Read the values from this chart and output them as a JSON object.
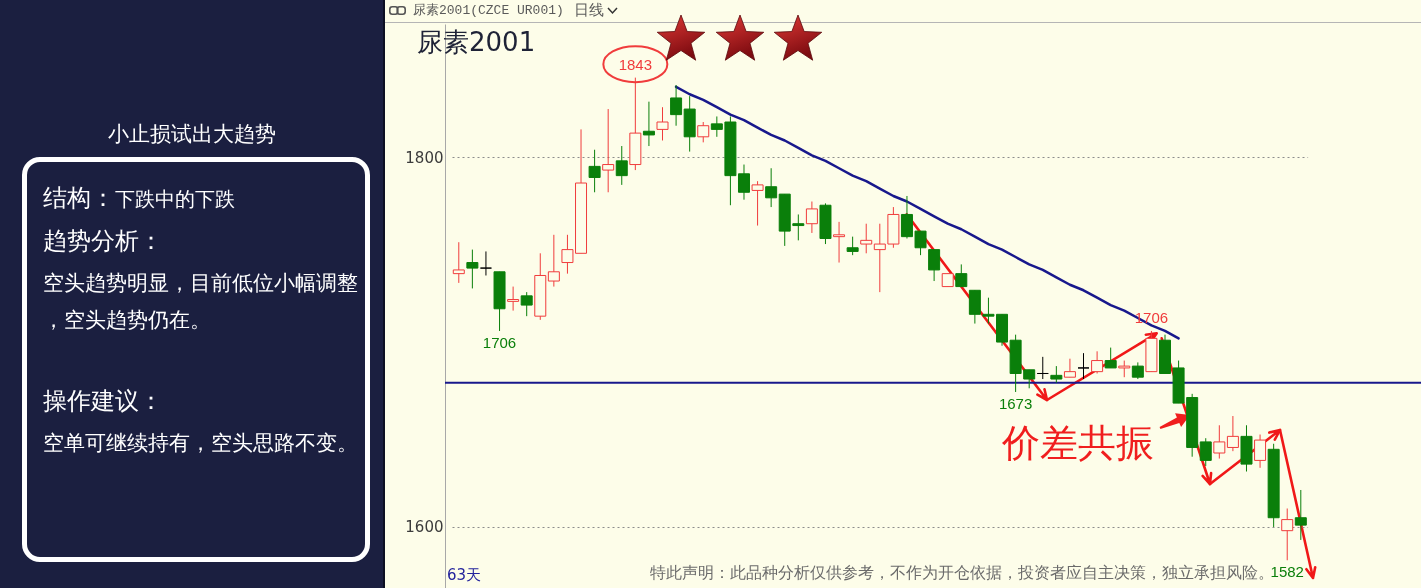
{
  "chart_data": [
    {
      "type": "other",
      "title": "小止损试出大趋势",
      "annotations": [
        "结构：",
        "下跌中的下跌",
        "趋势分析：",
        "空头趋势明显，目前低位小幅调整，空头趋势仍在。",
        "操作建议：",
        "空单可继续持有，空头思路不变。"
      ]
    },
    {
      "type": "candlestick",
      "title": "尿素2001",
      "subtitle": "尿素2001(CZCE UR001)",
      "categories": [
        null,
        null,
        null,
        null,
        null,
        null,
        null,
        null,
        null,
        null,
        null,
        null,
        null,
        null,
        null,
        null,
        null,
        null,
        null,
        null,
        null,
        null,
        null,
        null,
        null,
        null,
        null,
        null,
        null,
        null,
        null,
        null,
        null,
        null,
        null,
        null,
        null,
        null,
        null,
        null,
        null,
        null,
        null,
        null,
        null,
        null,
        null,
        null,
        null,
        null,
        null,
        null,
        null,
        null,
        null,
        null,
        null,
        null,
        null,
        null,
        null,
        null,
        null
      ],
      "ohlc": [
        [
          1737,
          1754,
          1732,
          1739
        ],
        [
          1743,
          1750,
          1729,
          1740
        ],
        [
          1740,
          1749,
          1736,
          1740
        ],
        [
          1738,
          1738,
          1706,
          1718
        ],
        [
          1722,
          1730,
          1717,
          1723
        ],
        [
          1725,
          1727,
          1714,
          1720
        ],
        [
          1714,
          1748,
          1712,
          1736
        ],
        [
          1733,
          1758,
          1730,
          1738
        ],
        [
          1743,
          1758,
          1737,
          1750
        ],
        [
          1748,
          1815,
          1748,
          1786
        ],
        [
          1795,
          1804,
          1781,
          1789
        ],
        [
          1793,
          1826,
          1781,
          1796
        ],
        [
          1798,
          1806,
          1785,
          1790
        ],
        [
          1796,
          1843,
          1793,
          1813
        ],
        [
          1814,
          1830,
          1806,
          1812
        ],
        [
          1815,
          1827,
          1809,
          1819
        ],
        [
          1832,
          1839,
          1817,
          1823
        ],
        [
          1826,
          1833,
          1803,
          1811
        ],
        [
          1811,
          1819,
          1808,
          1817
        ],
        [
          1818,
          1822,
          1811,
          1815
        ],
        [
          1819,
          1822,
          1774,
          1790
        ],
        [
          1791,
          1796,
          1777,
          1781
        ],
        [
          1782,
          1787,
          1763,
          1785
        ],
        [
          1784,
          1794,
          1773,
          1778
        ],
        [
          1780,
          1780,
          1752,
          1760
        ],
        [
          1764,
          1769,
          1755,
          1763
        ],
        [
          1764,
          1776,
          1759,
          1772
        ],
        [
          1774,
          1775,
          1753,
          1756
        ],
        [
          1757,
          1765,
          1743,
          1758
        ],
        [
          1751,
          1757,
          1747,
          1749
        ],
        [
          1753,
          1764,
          1748,
          1755
        ],
        [
          1750,
          1764,
          1727,
          1753
        ],
        [
          1753,
          1773,
          1751,
          1769
        ],
        [
          1769,
          1779,
          1756,
          1757
        ],
        [
          1760,
          1760,
          1747,
          1751
        ],
        [
          1750,
          1750,
          1733,
          1739
        ],
        [
          1730,
          1737,
          1730,
          1737
        ],
        [
          1737,
          1742,
          1730,
          1730
        ],
        [
          1728,
          1728,
          1710,
          1715
        ],
        [
          1715,
          1724,
          1710,
          1714
        ],
        [
          1715,
          1715,
          1698,
          1700
        ],
        [
          1701,
          1704,
          1673,
          1683
        ],
        [
          1685,
          1685,
          1675,
          1680
        ],
        [
          1683,
          1692,
          1680,
          1683
        ],
        [
          1682,
          1687,
          1678,
          1680
        ],
        [
          1681,
          1691,
          1681,
          1684
        ],
        [
          1686,
          1694,
          1680,
          1686
        ],
        [
          1684,
          1695,
          1683,
          1690
        ],
        [
          1690,
          1697,
          1686,
          1686
        ],
        [
          1686,
          1690,
          1681,
          1687
        ],
        [
          1687,
          1689,
          1680,
          1681
        ],
        [
          1684,
          1706,
          1684,
          1702
        ],
        [
          1701,
          1704,
          1683,
          1683
        ],
        [
          1686,
          1690,
          1667,
          1667
        ],
        [
          1670,
          1672,
          1638,
          1643
        ],
        [
          1646,
          1648,
          1633,
          1636
        ],
        [
          1640,
          1655,
          1637,
          1646
        ],
        [
          1643,
          1660,
          1641,
          1649
        ],
        [
          1649,
          1655,
          1630,
          1634
        ],
        [
          1636,
          1650,
          1632,
          1647
        ],
        [
          1642,
          1645,
          1600,
          1605
        ],
        [
          1598,
          1610,
          1582,
          1604
        ],
        [
          1605,
          1620,
          1593,
          1601
        ]
      ],
      "colors": [
        "#f03c3c",
        "#0a7f0a",
        "#000000",
        "#0a7f0a",
        "#f03c3c",
        "#0a7f0a",
        "#f03c3c",
        "#f03c3c",
        "#f03c3c",
        "#f03c3c",
        "#0a7f0a",
        "#f03c3c",
        "#0a7f0a",
        "#f03c3c",
        "#0a7f0a",
        "#f03c3c",
        "#0a7f0a",
        "#0a7f0a",
        "#f03c3c",
        "#0a7f0a",
        "#0a7f0a",
        "#0a7f0a",
        "#f03c3c",
        "#0a7f0a",
        "#0a7f0a",
        "#0a7f0a",
        "#f03c3c",
        "#0a7f0a",
        "#f03c3c",
        "#0a7f0a",
        "#f03c3c",
        "#f03c3c",
        "#f03c3c",
        "#0a7f0a",
        "#0a7f0a",
        "#0a7f0a",
        "#f03c3c",
        "#0a7f0a",
        "#0a7f0a",
        "#0a7f0a",
        "#0a7f0a",
        "#0a7f0a",
        "#0a7f0a",
        "#000000",
        "#0a7f0a",
        "#f03c3c",
        "#000000",
        "#f03c3c",
        "#0a7f0a",
        "#f03c3c",
        "#0a7f0a",
        "#f03c3c",
        "#0a7f0a",
        "#0a7f0a",
        "#0a7f0a",
        "#0a7f0a",
        "#f03c3c",
        "#f03c3c",
        "#0a7f0a",
        "#f03c3c",
        "#0a7f0a",
        "#f03c3c",
        "#0a7f0a"
      ],
      "series": [
        {
          "type": "line",
          "color": "#18188c",
          "values": [
            null,
            null,
            null,
            null,
            null,
            null,
            null,
            null,
            null,
            null,
            null,
            null,
            null,
            null,
            null,
            null,
            1838,
            1834,
            1831,
            1827,
            1823,
            1820,
            1816,
            1812,
            1809,
            1805,
            1801,
            1798,
            1794,
            1790,
            1787,
            1783,
            1779,
            1776,
            1772,
            1768,
            1764,
            1761,
            1757,
            1753,
            1750,
            1746,
            1742,
            1739,
            1735,
            1731,
            1728,
            1724,
            1720,
            1717,
            1713,
            1709,
            1706,
            1702,
            null,
            null,
            null,
            null,
            null,
            null,
            null,
            null,
            null
          ]
        }
      ],
      "ref_lines": [
        {
          "axis": "y",
          "value": 1678,
          "color": "#18188c"
        }
      ],
      "ylim": [
        1567,
        1872
      ],
      "yticks": [
        1600,
        1800
      ],
      "grid": "y",
      "tick_labels": "y",
      "annotations": [
        "日线",
        "63天",
        "特此声明：此品种分析仅供参考，不作为开仓依据，投资者应自主决策，独立承担风险。",
        "价差共振",
        {
          "text": "1843",
          "y": 1843
        },
        {
          "text": "1706",
          "y": 1706
        },
        {
          "text": "1673",
          "y": 1673
        },
        {
          "text": "1706",
          "y": 1706
        },
        {
          "text": "1582",
          "y": 1582
        }
      ]
    }
  ]
}
